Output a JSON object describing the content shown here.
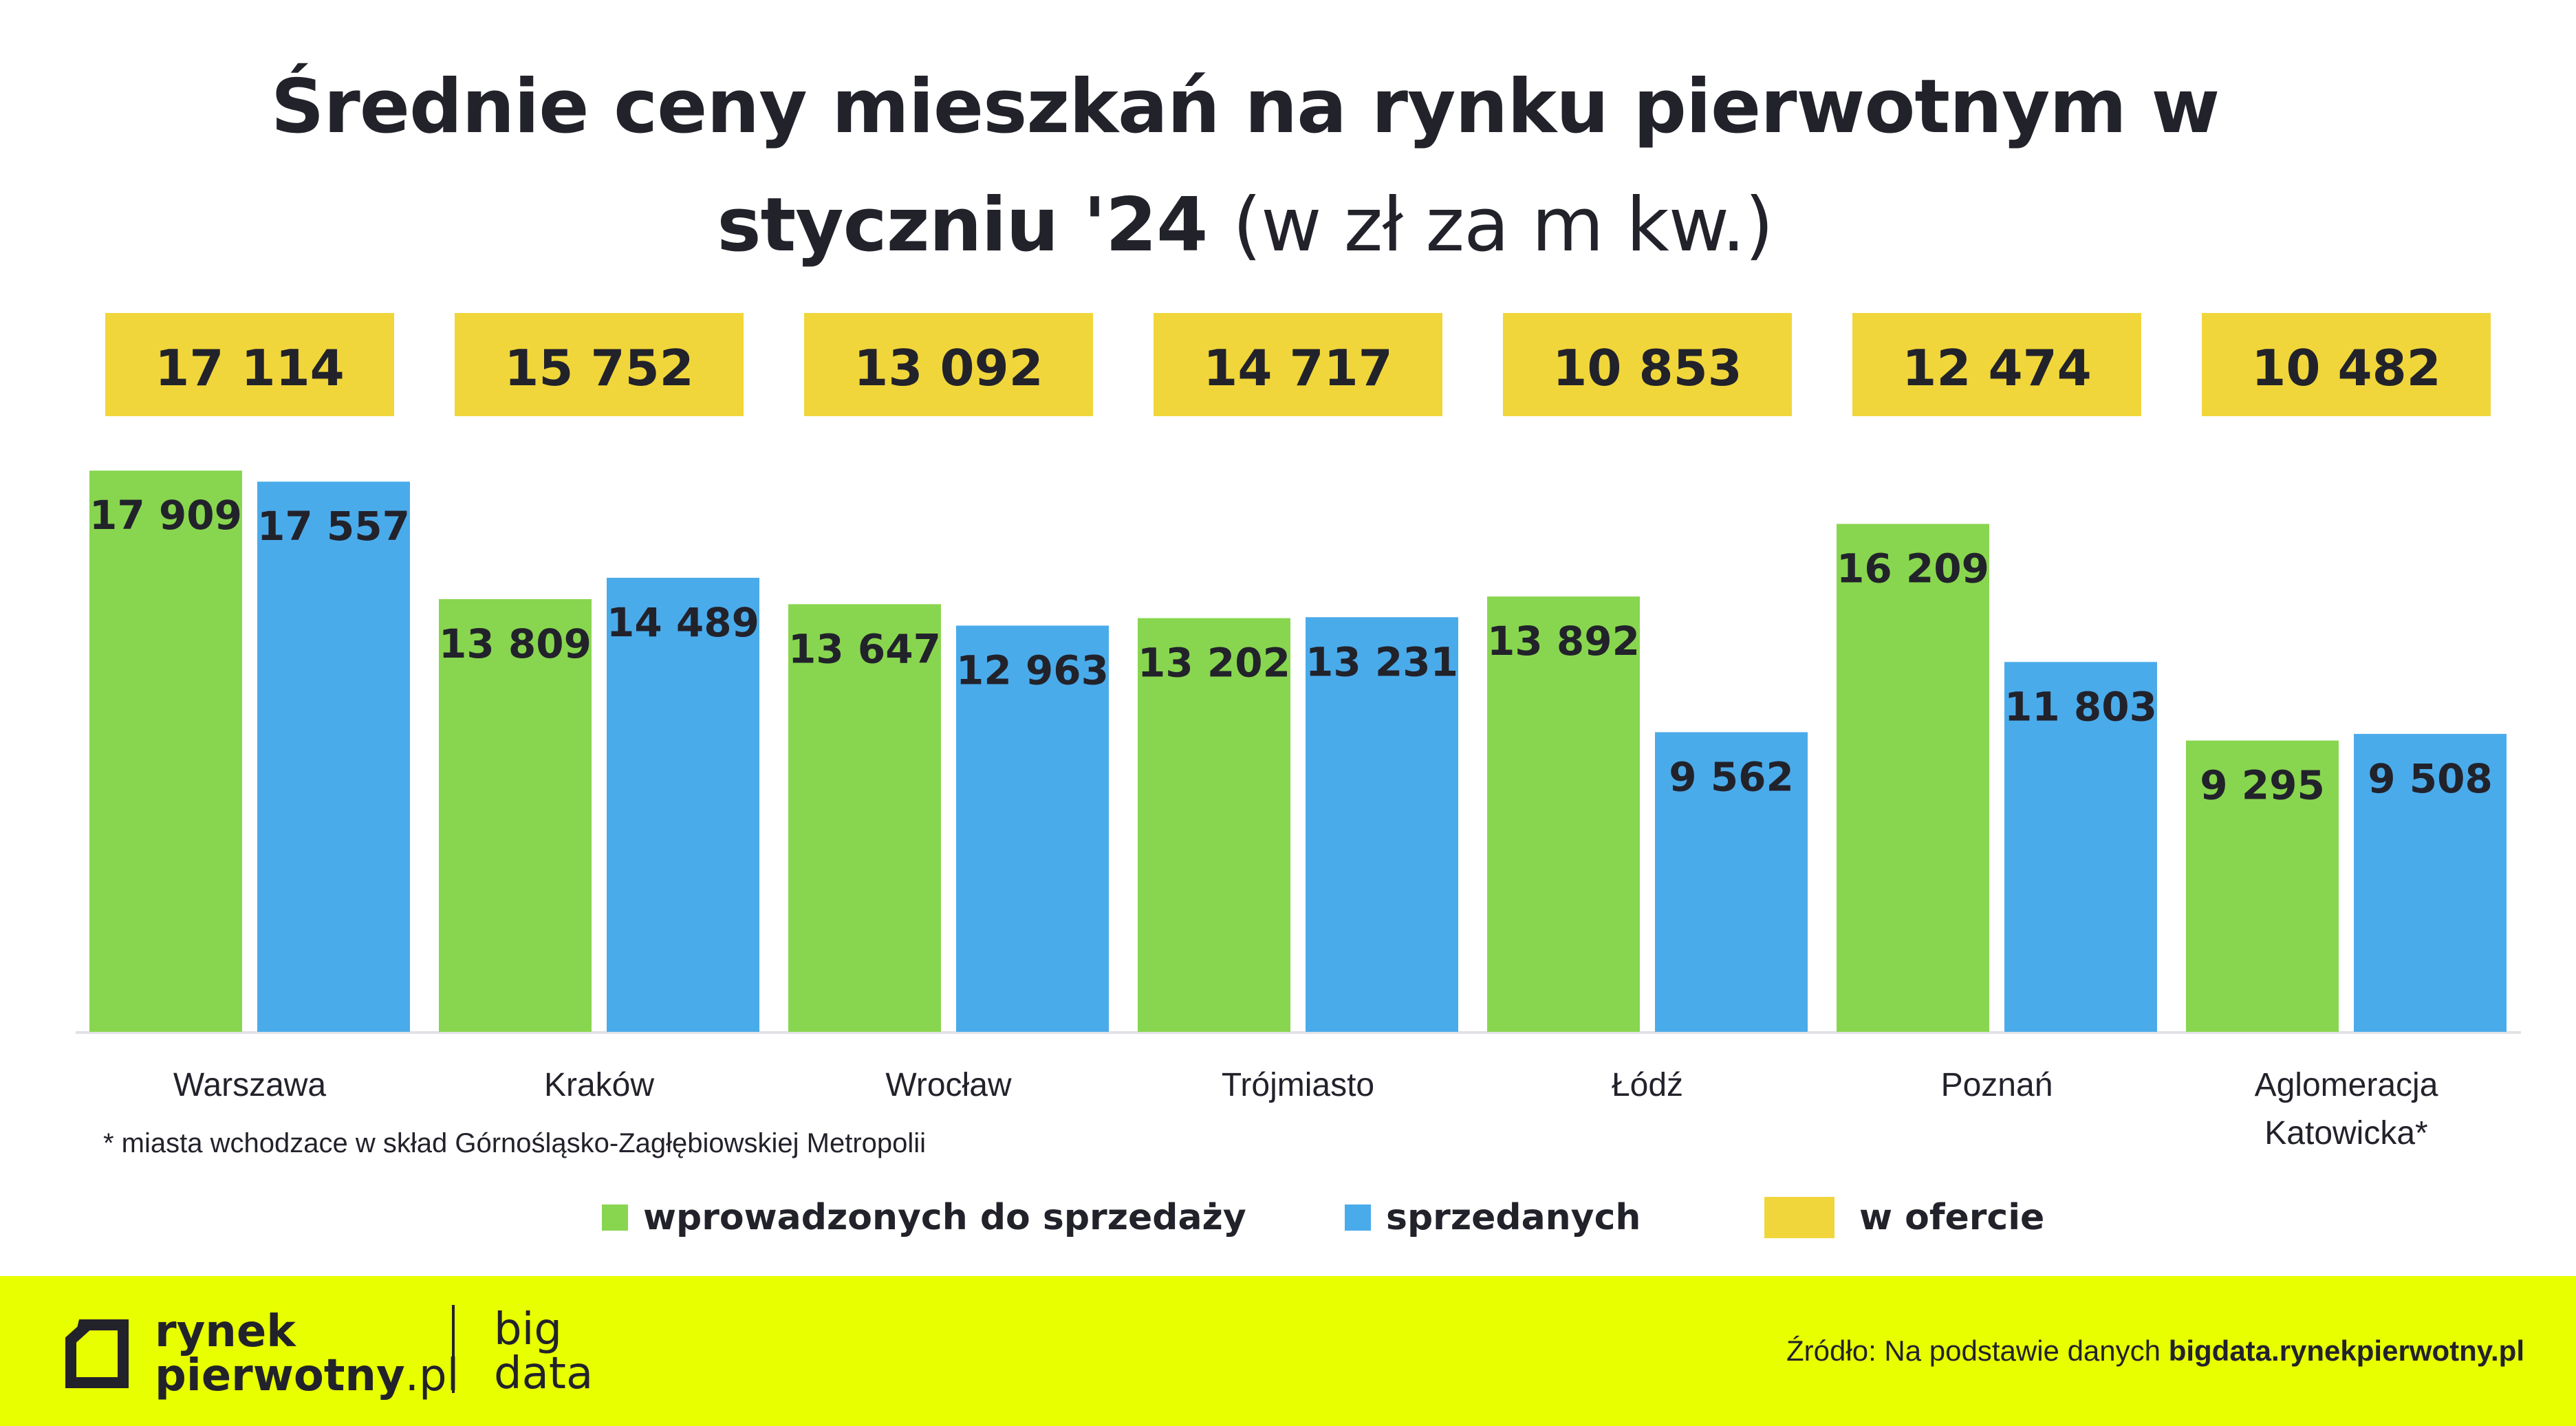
{
  "title": {
    "line1": "Średnie ceny mieszkań na rynku pierwotnym w",
    "line2_bold": "styczniu '24",
    "line2_light": "(w zł za m kw.)"
  },
  "footnote": "* miasta wchodzace w skład Górnośląsko-Zagłębiowskiej Metropolii",
  "legend": [
    {
      "label": "wprowadzonych do sprzedaży",
      "color": "#88d64f"
    },
    {
      "label": "sprzedanych",
      "color": "#4aabea"
    },
    {
      "label": "w ofercie",
      "color": "#f0d63a"
    }
  ],
  "footer": {
    "brand_line1": "rynek",
    "brand_line2_bold": "pierwotny",
    "brand_line2_light": ".pl",
    "big_line1": "big",
    "big_line2": "data",
    "source_prefix": "Źródło: Na podstawie danych",
    "source_link": "bigdata.rynekpierwotny.pl",
    "background": "#e8ff00"
  },
  "chart_data": {
    "type": "bar",
    "categories": [
      "Warszawa",
      "Kraków",
      "Wrocław",
      "Trójmiasto",
      "Łódź",
      "Poznań",
      "Aglomeracja Katowicka*"
    ],
    "series": [
      {
        "name": "wprowadzonych do sprzedaży",
        "color": "#88d64f",
        "values": [
          17909,
          13809,
          13647,
          13202,
          13892,
          16209,
          9295
        ],
        "labels": [
          "17 909",
          "13 809",
          "13 647",
          "13 202",
          "13 892",
          "16 209",
          "9 295"
        ]
      },
      {
        "name": "sprzedanych",
        "color": "#4aabea",
        "values": [
          17557,
          14489,
          12963,
          13231,
          9562,
          11803,
          9508
        ],
        "labels": [
          "17 557",
          "14 489",
          "12 963",
          "13 231",
          "9 562",
          "11 803",
          "9 508"
        ]
      },
      {
        "name": "w ofercie",
        "color": "#f0d63a",
        "values": [
          17114,
          15752,
          13092,
          14717,
          10853,
          12474,
          10482
        ],
        "labels": [
          "17 114",
          "15 752",
          "13 092",
          "14 717",
          "10 853",
          "12 474",
          "10 482"
        ]
      }
    ],
    "title": "Średnie ceny mieszkań na rynku pierwotnym w styczniu '24 (w zł za m kw.)",
    "xlabel": "",
    "ylabel": "",
    "ylim": [
      0,
      18000
    ],
    "grid": false,
    "legend": "bottom"
  }
}
